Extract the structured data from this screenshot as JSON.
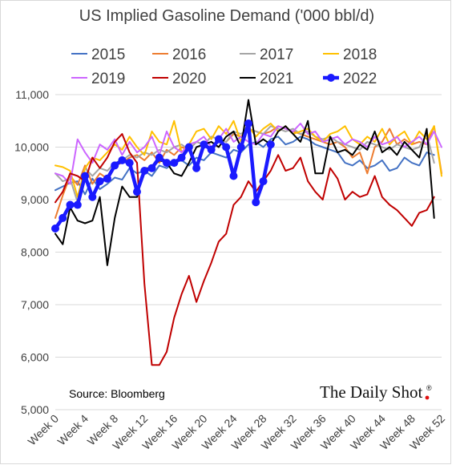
{
  "chart_data": {
    "type": "line",
    "title": "US Implied Gasoline Demand ('000 bbl/d)",
    "source": "Source: Bloomberg",
    "brand": "The Daily Shot",
    "brand_mark": "®",
    "xlabel": "",
    "ylabel": "",
    "xlim": [
      0,
      52
    ],
    "ylim": [
      5000,
      11000
    ],
    "y_ticks": [
      5000,
      6000,
      7000,
      8000,
      9000,
      10000,
      11000
    ],
    "y_tick_labels": [
      "5,000",
      "6,000",
      "7,000",
      "8,000",
      "9,000",
      "10,000",
      "11,000"
    ],
    "x_ticks": [
      0,
      4,
      8,
      12,
      16,
      20,
      24,
      28,
      32,
      36,
      40,
      44,
      48,
      52
    ],
    "x_tick_labels": [
      "Week 0",
      "Week 4",
      "Week 8",
      "Week 12",
      "Week 16",
      "Week 20",
      "Week 24",
      "Week 28",
      "Week 32",
      "Week 36",
      "Week 40",
      "Week 44",
      "Week 48",
      "Week 52"
    ],
    "grid": "horizontal",
    "legend": "top",
    "x_start": 0,
    "series": [
      {
        "name": "2015",
        "color": "#4472c4",
        "width": 2,
        "markers": false,
        "values": [
          9180,
          9250,
          9320,
          9350,
          9100,
          9400,
          9200,
          9300,
          9420,
          9380,
          9600,
          9500,
          9550,
          9450,
          9650,
          9600,
          9700,
          9750,
          9650,
          9800,
          9750,
          9900,
          9850,
          9800,
          9950,
          9900,
          10050,
          10100,
          10000,
          10150,
          10200,
          10050,
          10100,
          10200,
          10150,
          10050,
          10000,
          9950,
          9900,
          9700,
          9650,
          9750,
          9600,
          9650,
          9750,
          9550,
          9600,
          9800,
          9700,
          9650,
          9900,
          9850
        ]
      },
      {
        "name": "2016",
        "color": "#ed7d31",
        "width": 2,
        "markers": false,
        "values": [
          8650,
          9080,
          9450,
          9280,
          9650,
          9300,
          9500,
          9400,
          9650,
          9700,
          9800,
          9850,
          9750,
          9900,
          9700,
          9950,
          9850,
          10000,
          9950,
          10100,
          10050,
          10200,
          10150,
          10100,
          10250,
          10200,
          10350,
          10300,
          10250,
          10300,
          10400,
          10350,
          10300,
          10250,
          10200,
          10150,
          10100,
          10050,
          10100,
          10000,
          9800,
          9900,
          9500,
          10000,
          10100,
          10350,
          10050,
          10150,
          10050,
          10100,
          10050,
          10400,
          9500
        ]
      },
      {
        "name": "2017",
        "color": "#a5a5a5",
        "width": 2,
        "markers": false,
        "values": [
          9500,
          9350,
          9400,
          8950,
          9600,
          9450,
          9600,
          9550,
          9700,
          9750,
          9850,
          9800,
          9900,
          9850,
          9950,
          9900,
          10000,
          10050,
          9950,
          10100,
          10050,
          10200,
          10150,
          10100,
          10300,
          10250,
          10350,
          10300,
          10250,
          10400,
          10350,
          10300,
          10350,
          10250,
          10300,
          10200,
          10150,
          10200,
          10100,
          10050,
          10000,
          9950,
          10100,
          10050,
          10000,
          9950,
          10050,
          10000,
          9950,
          10000,
          10250,
          9700
        ]
      },
      {
        "name": "2018",
        "color": "#ffc000",
        "width": 2,
        "markers": false,
        "values": [
          9650,
          9620,
          9550,
          9050,
          9600,
          9800,
          9750,
          9900,
          10050,
          9950,
          10200,
          10000,
          9850,
          10300,
          10100,
          10050,
          10500,
          9900,
          10050,
          10300,
          10350,
          10150,
          10400,
          10250,
          10500,
          10100,
          10400,
          10200,
          10350,
          10450,
          10300,
          10400,
          10250,
          10300,
          10350,
          10200,
          10100,
          10250,
          10300,
          10400,
          10150,
          10050,
          10200,
          10100,
          10350,
          10050,
          10200,
          10300,
          10050,
          10300,
          10150,
          10400,
          9450
        ]
      },
      {
        "name": "2019",
        "color": "#cc66ff",
        "width": 2,
        "markers": false,
        "values": [
          9500,
          9450,
          9300,
          10150,
          9900,
          9700,
          10050,
          9950,
          10150,
          9850,
          10100,
          9900,
          10000,
          10200,
          9850,
          10300,
          10000,
          9900,
          10050,
          10100,
          10200,
          10000,
          10150,
          10350,
          10100,
          10200,
          10100,
          10050,
          10250,
          10200,
          10400,
          10350,
          10300,
          10450,
          10250,
          10300,
          10100,
          10150,
          10200,
          10050,
          10150,
          10100,
          10000,
          10200,
          10050,
          10100,
          10200,
          10000,
          10100,
          10200,
          10050,
          10300,
          10000
        ]
      },
      {
        "name": "2020",
        "color": "#c00000",
        "width": 2,
        "markers": false,
        "values": [
          8950,
          9150,
          9500,
          9450,
          9350,
          9800,
          9600,
          9800,
          10100,
          10250,
          9900,
          9700,
          7400,
          5850,
          5850,
          6100,
          6750,
          7200,
          7550,
          7050,
          7450,
          7800,
          8200,
          8350,
          8900,
          9050,
          9350,
          9150,
          9350,
          9550,
          9850,
          9550,
          9600,
          9800,
          9350,
          9150,
          9000,
          9600,
          9400,
          9000,
          9150,
          9050,
          9100,
          9450,
          9050,
          8900,
          8800,
          8650,
          8500,
          8750,
          8800,
          9050
        ]
      },
      {
        "name": "2021",
        "color": "#000000",
        "width": 2,
        "markers": false,
        "values": [
          8350,
          8150,
          8850,
          8600,
          8550,
          8600,
          9050,
          7750,
          8650,
          9250,
          9050,
          9050,
          9600,
          9600,
          9750,
          9700,
          9500,
          9450,
          9700,
          10000,
          10050,
          10100,
          10000,
          10200,
          10300,
          10000,
          10900,
          10050,
          10150,
          10050,
          10300,
          10400,
          10250,
          10100,
          10500,
          9500,
          9500,
          10200,
          9900,
          9950,
          9850,
          10050,
          9950,
          10300,
          9900,
          10000,
          9850,
          10100,
          9950,
          9800,
          10350,
          8650
        ]
      },
      {
        "name": "2022",
        "color": "#1a1aff",
        "width": 4.5,
        "markers": true,
        "values": [
          8450,
          8650,
          8900,
          8900,
          9450,
          9050,
          9350,
          9400,
          9650,
          9750,
          9700,
          9150,
          9550,
          9600,
          9800,
          9700,
          9700,
          9800,
          10000,
          9600,
          10050,
          9950,
          10150,
          10000,
          9450,
          10000,
          10450,
          8950,
          9350,
          10050
        ]
      }
    ]
  }
}
